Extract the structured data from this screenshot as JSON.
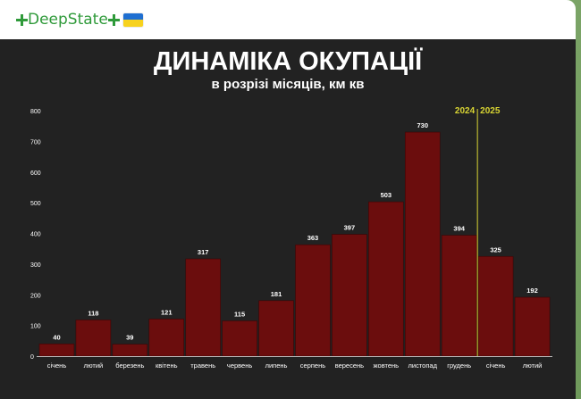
{
  "channel": {
    "name": "DeepState",
    "left_icon": "green-cross-icon",
    "right_icon": "green-cross-icon",
    "flag_icon": "ukraine-flag-icon"
  },
  "chart_data": {
    "type": "bar",
    "title": "ДИНАМІКА ОКУПАЦІЇ",
    "subtitle": "в розрізі місяців, км кв",
    "categories": [
      "січень",
      "лютий",
      "березень",
      "квітень",
      "травень",
      "червень",
      "липень",
      "серпень",
      "вересень",
      "жовтень",
      "листопад",
      "грудень",
      "січень",
      "лютий"
    ],
    "values": [
      40,
      118,
      39,
      121,
      317,
      115,
      181,
      363,
      397,
      503,
      730,
      394,
      325,
      192
    ],
    "ylim": [
      0,
      800
    ],
    "yticks": [
      0,
      100,
      200,
      300,
      400,
      500,
      600,
      700,
      800
    ],
    "xlabel": "",
    "ylabel": "",
    "grid": false,
    "divider": {
      "after_index": 11,
      "left_label": "2024",
      "right_label": "2025",
      "color": "#d9d533"
    },
    "bar_color": "#6b0d0d",
    "background_color": "#222222",
    "text_color": "#ffffff"
  }
}
